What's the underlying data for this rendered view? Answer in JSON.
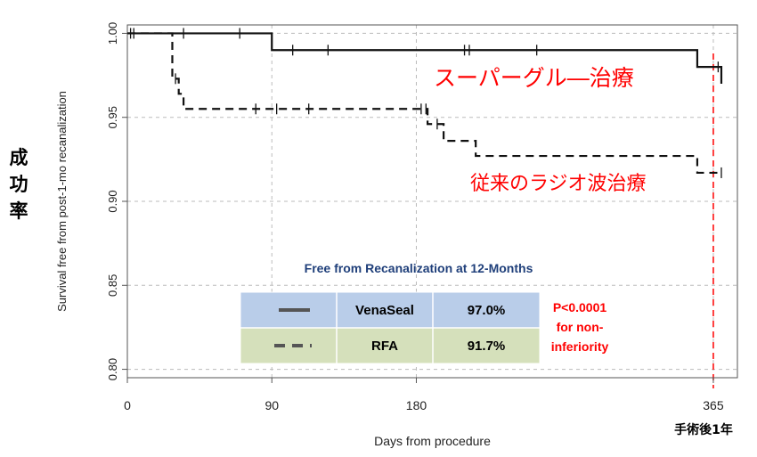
{
  "chart_data": {
    "type": "line",
    "xlabel": "Days from procedure",
    "ylabel": "Survival free from post-1-mo recanalization",
    "ylabel_jp": [
      "成",
      "功",
      "率"
    ],
    "xlim": [
      0,
      380
    ],
    "ylim": [
      0.795,
      1.005
    ],
    "xticks": [
      "0",
      "90",
      "180",
      "365"
    ],
    "yticks": [
      "0.80",
      "0.85",
      "0.90",
      "0.95",
      "1.00"
    ],
    "grid": true,
    "marker_line": {
      "x": 365,
      "label": "手術後1年"
    },
    "series": [
      {
        "name": "スーパーグル―治療",
        "style": "solid",
        "steps": [
          [
            0,
            1.0
          ],
          [
            90,
            0.99
          ],
          [
            355,
            0.98
          ],
          [
            370,
            0.97
          ]
        ],
        "censor_x": [
          2,
          35,
          70,
          103,
          125,
          210,
          213,
          255,
          368
        ]
      },
      {
        "name": "従来のラジオ波治療",
        "style": "dashed",
        "steps": [
          [
            0,
            1.0
          ],
          [
            28,
            0.973
          ],
          [
            32,
            0.964
          ],
          [
            35,
            0.955
          ],
          [
            187,
            0.946
          ],
          [
            197,
            0.936
          ],
          [
            217,
            0.927
          ],
          [
            355,
            0.917
          ],
          [
            370,
            0.917
          ]
        ],
        "censor_x": [
          4,
          30,
          80,
          93,
          113,
          183,
          186,
          193,
          370
        ]
      }
    ],
    "annotations": [
      "スーパーグル―治療",
      "従来のラジオ波治療"
    ],
    "inset_table": {
      "title": "Free from Recanalization at 12-Months",
      "rows": [
        {
          "name": "VenaSeal",
          "value": "97.0%"
        },
        {
          "name": "RFA",
          "value": "91.7%"
        }
      ],
      "pvalue_lines": [
        "P<0.0001",
        "for non-",
        "inferiority"
      ]
    },
    "colors": {
      "highlight": "#ff0000",
      "table_blue": "#b9cde9",
      "table_green": "#d5e0bb",
      "table_title": "#1f3f7a"
    }
  }
}
